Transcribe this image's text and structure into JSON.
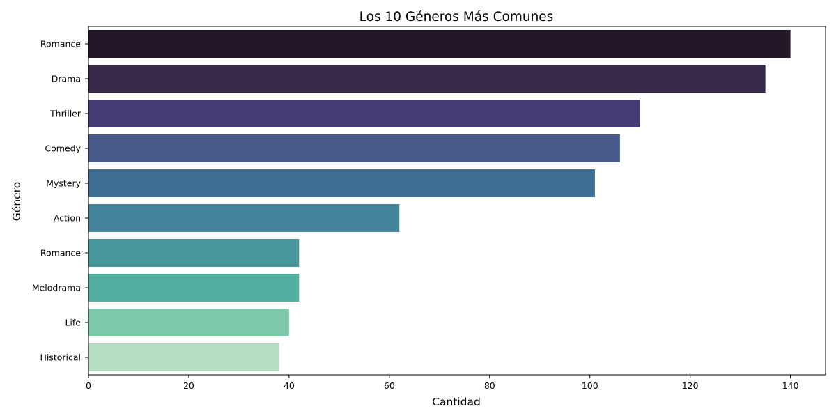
{
  "chart_data": {
    "type": "bar",
    "orientation": "horizontal",
    "title": "Los 10 Géneros Más Comunes",
    "xlabel": "Cantidad",
    "ylabel": "Género",
    "categories": [
      "Romance",
      "Drama",
      "Thriller",
      "Comedy",
      "Mystery",
      "Action",
      "Romance",
      "Melodrama",
      "Life",
      "Historical"
    ],
    "values": [
      140,
      135,
      110,
      106,
      101,
      62,
      42,
      42,
      40,
      38
    ],
    "colors": [
      "#231728",
      "#372a4b",
      "#463b72",
      "#465a8b",
      "#416e93",
      "#43849b",
      "#47989c",
      "#53b0a1",
      "#7dc8a8",
      "#b4ddc3"
    ],
    "xlim": [
      0,
      147
    ],
    "xticks": [
      0,
      20,
      40,
      60,
      80,
      100,
      120,
      140
    ],
    "grid": false,
    "legend": "none"
  }
}
